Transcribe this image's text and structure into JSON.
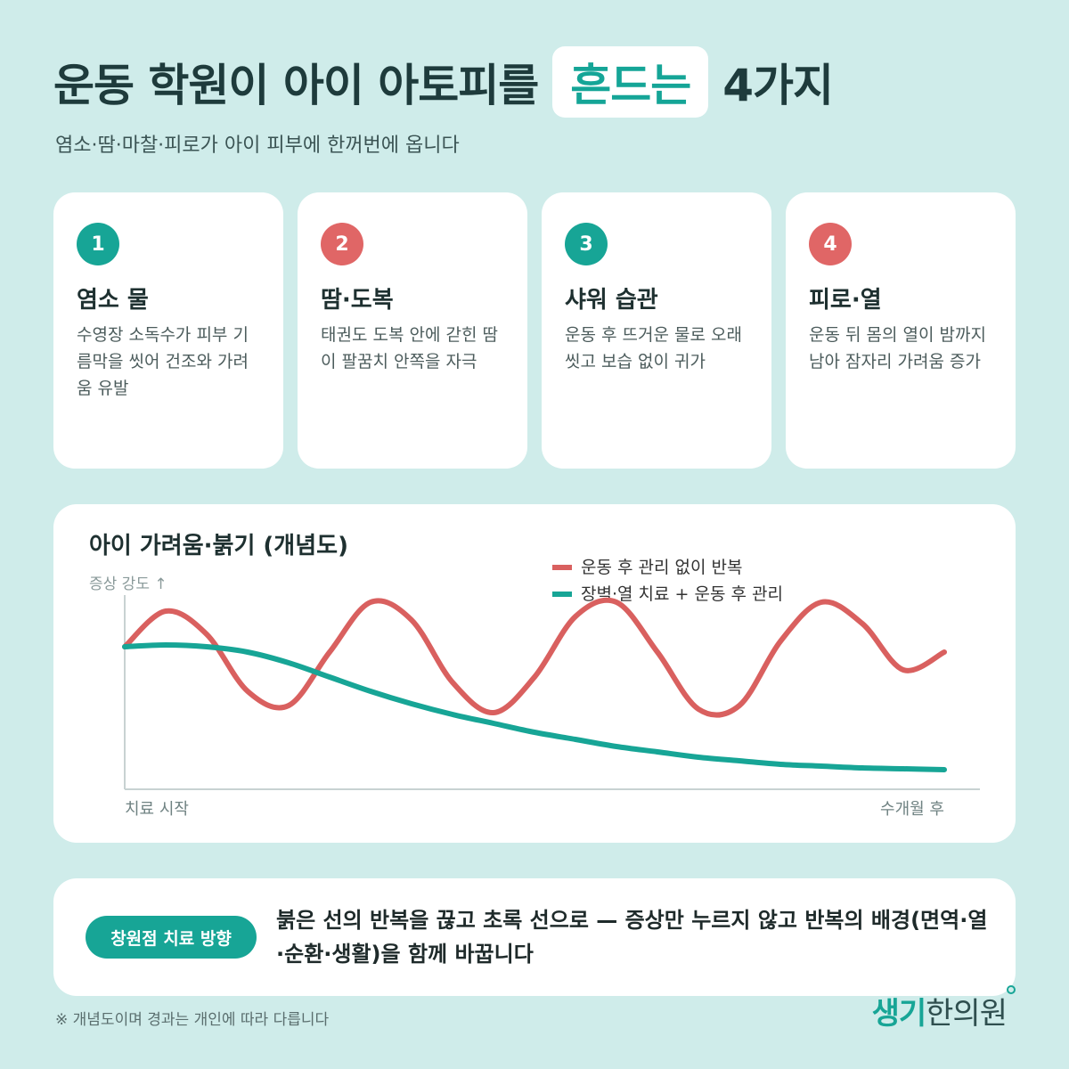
{
  "header": {
    "title_prefix": "운동 학원이 아이 아토피를",
    "title_highlight": "흔드는",
    "title_suffix": "4가지",
    "subtitle": "염소·땀·마찰·피로가 아이 피부에 한꺼번에 옵니다"
  },
  "cards": [
    {
      "number": "1",
      "title": "염소 물",
      "desc": "수영장 소독수가 피부 기름막을 씻어 건조와 가려움 유발",
      "color": "#17a596"
    },
    {
      "number": "2",
      "title": "땀·도복",
      "desc": "태권도 도복 안에 갇힌 땀이 팔꿈치 안쪽을 자극",
      "color": "#e06666"
    },
    {
      "number": "3",
      "title": "샤워 습관",
      "desc": "운동 후 뜨거운 물로 오래 씻고 보습 없이 귀가",
      "color": "#17a596"
    },
    {
      "number": "4",
      "title": "피로·열",
      "desc": "운동 뒤 몸의 열이 밤까지 남아 잠자리 가려움 증가",
      "color": "#e06666"
    }
  ],
  "chart": {
    "title": "아이 가려움·붉기 (개념도)"
  },
  "chart_data": {
    "type": "line",
    "title": "아이 가려움·붉기 (개념도)",
    "ylabel": "증상 강도 ↑",
    "x_start_label": "치료 시작",
    "x_end_label": "수개월 후",
    "legend_position": "top-right",
    "grid": false,
    "x": [
      0,
      0.05,
      0.1,
      0.15,
      0.2,
      0.25,
      0.3,
      0.35,
      0.4,
      0.45,
      0.5,
      0.55,
      0.6,
      0.65,
      0.7,
      0.75,
      0.8,
      0.85,
      0.9,
      0.95,
      1.0
    ],
    "series": [
      {
        "name": "운동 후 관리 없이 반복",
        "color": "#d9605f",
        "values": [
          0.75,
          0.95,
          0.82,
          0.5,
          0.42,
          0.72,
          1.0,
          0.9,
          0.55,
          0.38,
          0.58,
          0.92,
          1.0,
          0.72,
          0.4,
          0.42,
          0.78,
          1.0,
          0.88,
          0.62,
          0.72
        ]
      },
      {
        "name": "장벽·열 치료 + 운동 후 관리",
        "color": "#17a596",
        "values": [
          0.75,
          0.76,
          0.75,
          0.72,
          0.66,
          0.58,
          0.5,
          0.43,
          0.37,
          0.32,
          0.27,
          0.23,
          0.19,
          0.16,
          0.13,
          0.11,
          0.09,
          0.08,
          0.07,
          0.065,
          0.06
        ]
      }
    ]
  },
  "bottom": {
    "pill_label": "창원점 치료 방향",
    "text": "붉은 선의 반복을 끊고 초록 선으로 — 증상만 누르지 않고 반복의 배경(면역·열·순환·생활)을 함께 바꿉니다"
  },
  "footnote": "※ 개념도이며 경과는 개인에 따라 다릅니다",
  "brand": {
    "part1": "생기",
    "part2": "한의원"
  }
}
